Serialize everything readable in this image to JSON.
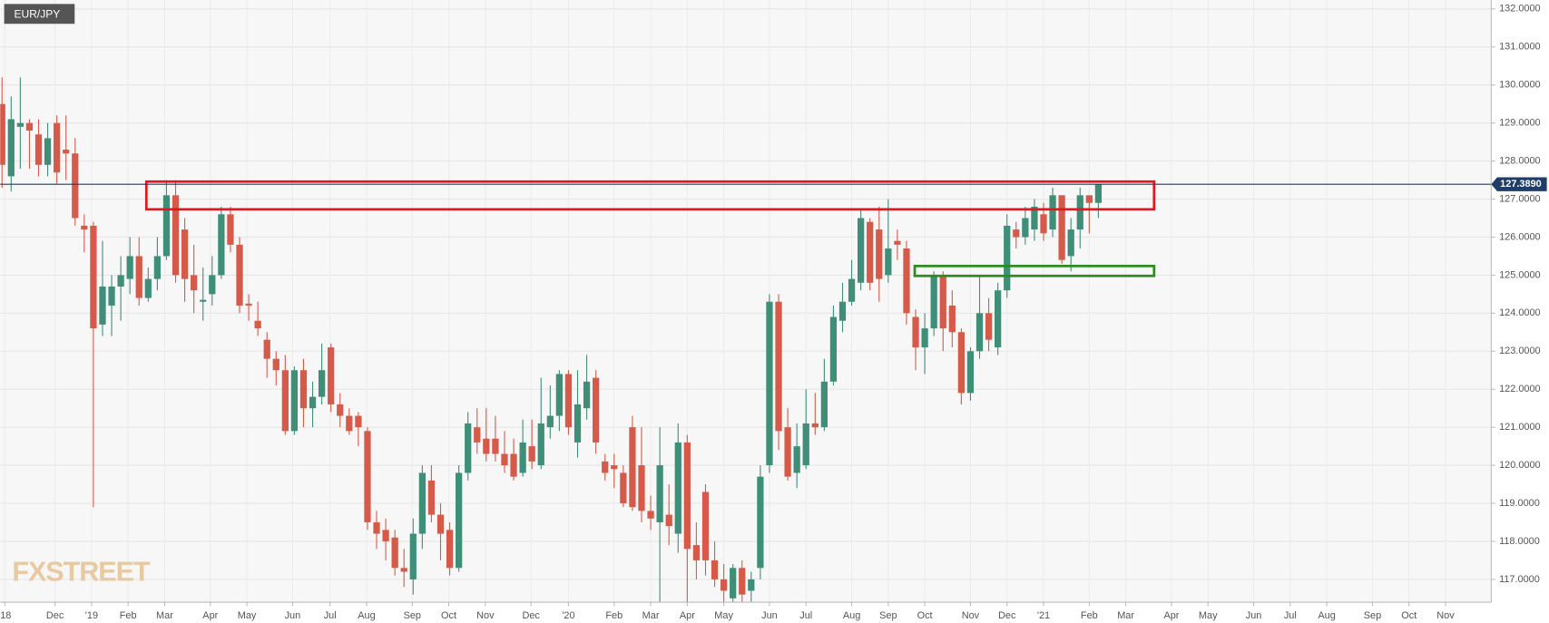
{
  "chart_data": {
    "type": "candlestick",
    "symbol": "EUR/JPY",
    "watermark": "FXSTREET",
    "up_color": "#3e8e78",
    "down_color": "#d55a4a",
    "grid": true,
    "x": [
      0,
      1,
      2,
      3,
      4,
      5,
      6,
      7,
      8,
      9,
      10,
      11,
      12,
      13,
      14,
      15,
      16,
      17,
      18,
      19,
      20,
      21,
      22,
      23,
      24,
      25,
      26,
      27,
      28,
      29,
      30,
      31,
      32,
      33,
      34,
      35,
      36,
      37,
      38,
      39,
      40,
      41,
      42,
      43,
      44,
      45,
      46,
      47,
      48,
      49,
      50,
      51,
      52,
      53,
      54,
      55,
      56,
      57,
      58,
      59,
      60,
      61,
      62,
      63,
      64,
      65,
      66,
      67,
      68,
      69,
      70,
      71,
      72,
      73,
      74,
      75,
      76,
      77,
      78,
      79,
      80,
      81,
      82,
      83,
      84,
      85,
      86,
      87,
      88,
      89,
      90,
      91,
      92,
      93,
      94,
      95,
      96,
      97,
      98,
      99,
      100,
      101,
      102,
      103,
      104,
      105,
      106,
      107,
      108,
      109,
      110,
      111,
      112,
      113,
      114,
      115,
      116,
      117,
      118,
      119,
      120
    ],
    "open": [
      129.5,
      127.6,
      128.9,
      129.0,
      128.7,
      127.9,
      129.0,
      128.3,
      128.2,
      126.3,
      126.3,
      123.7,
      124.2,
      124.7,
      124.9,
      125.5,
      124.4,
      124.9,
      125.5,
      127.1,
      126.2,
      125.0,
      124.3,
      124.5,
      125.0,
      126.6,
      125.8,
      124.25,
      123.8,
      123.3,
      122.8,
      122.5,
      120.9,
      122.5,
      121.5,
      121.8,
      123.1,
      121.6,
      121.3,
      121.3,
      120.9,
      118.5,
      118.3,
      118.1,
      117.3,
      117.0,
      118.2,
      119.6,
      118.7,
      118.3,
      117.3,
      119.8,
      121.0,
      120.7,
      120.7,
      120.3,
      120.3,
      119.8,
      120.5,
      120.0,
      121.0,
      121.3,
      122.4,
      120.6,
      121.5,
      122.3,
      120.1,
      120.0,
      119.8,
      121.0,
      120.0,
      118.8,
      118.5,
      118.7,
      118.2,
      120.6,
      117.9,
      119.3,
      117.5,
      117.0,
      116.5,
      117.3,
      116.7,
      117.3,
      120.0,
      124.3,
      121.0,
      119.8,
      120.0,
      121.1,
      121.0,
      122.2,
      123.8,
      124.3,
      124.8,
      126.4,
      126.2,
      125.0,
      125.9,
      125.7,
      123.9,
      123.1,
      123.6,
      125.0,
      124.2,
      123.5,
      121.9,
      123.0,
      124.0,
      123.1,
      124.6,
      126.2,
      126.0,
      126.2,
      126.6,
      126.2,
      127.1,
      125.5,
      126.2,
      127.1,
      126.9
    ],
    "high": [
      130.2,
      129.7,
      130.2,
      129.1,
      129.1,
      129.0,
      129.2,
      129.2,
      128.6,
      126.6,
      126.4,
      125.9,
      125.0,
      125.5,
      126.0,
      126.0,
      125.2,
      126.0,
      127.5,
      127.5,
      126.5,
      125.8,
      125.2,
      125.5,
      126.8,
      126.8,
      126.0,
      124.5,
      124.3,
      123.5,
      123.0,
      122.9,
      122.6,
      122.8,
      122.2,
      123.2,
      123.2,
      121.9,
      121.5,
      121.4,
      121.0,
      118.8,
      118.6,
      118.3,
      117.8,
      118.6,
      120.0,
      120.0,
      119.0,
      118.5,
      120.0,
      121.4,
      121.5,
      121.5,
      121.3,
      120.9,
      120.7,
      121.2,
      121.2,
      122.3,
      122.1,
      122.5,
      122.5,
      122.5,
      122.9,
      122.5,
      120.3,
      120.3,
      120.0,
      121.3,
      121.0,
      119.2,
      121.0,
      119.5,
      121.1,
      120.8,
      118.5,
      119.5,
      118.0,
      117.4,
      117.4,
      117.5,
      117.2,
      120.0,
      124.5,
      124.5,
      121.5,
      121.1,
      122.0,
      121.9,
      122.8,
      124.2,
      124.8,
      125.4,
      126.7,
      126.5,
      126.8,
      127.0,
      126.2,
      125.9,
      124.1,
      124.0,
      125.1,
      125.1,
      124.6,
      123.6,
      123.1,
      125.0,
      124.4,
      124.8,
      126.6,
      126.4,
      126.8,
      127.0,
      126.9,
      127.3,
      127.1,
      126.5,
      127.3,
      127.1,
      127.4
    ],
    "low": [
      127.3,
      127.2,
      127.8,
      127.8,
      127.6,
      127.6,
      127.4,
      127.5,
      126.3,
      125.6,
      118.9,
      123.4,
      123.4,
      123.8,
      124.5,
      124.2,
      124.3,
      124.6,
      125.4,
      124.8,
      124.3,
      124.0,
      123.8,
      124.2,
      124.9,
      125.6,
      124.0,
      123.8,
      123.4,
      122.3,
      122.1,
      120.8,
      120.8,
      121.0,
      121.0,
      121.6,
      121.4,
      121.0,
      120.8,
      120.5,
      118.3,
      117.8,
      117.5,
      117.1,
      116.8,
      116.6,
      117.8,
      118.5,
      117.5,
      117.1,
      117.2,
      119.6,
      120.3,
      120.1,
      120.1,
      119.8,
      119.6,
      119.7,
      119.9,
      119.9,
      120.7,
      120.9,
      120.8,
      120.2,
      121.2,
      120.3,
      119.6,
      119.4,
      118.9,
      118.8,
      118.5,
      118.3,
      115.9,
      117.9,
      117.7,
      116.2,
      117.0,
      117.1,
      116.8,
      116.3,
      116.1,
      116.4,
      116.3,
      117.0,
      119.8,
      120.4,
      119.6,
      119.4,
      119.9,
      120.8,
      120.9,
      122.1,
      123.5,
      124.2,
      124.6,
      124.6,
      124.3,
      124.8,
      125.4,
      123.7,
      122.5,
      122.4,
      123.4,
      123.0,
      123.1,
      121.6,
      121.7,
      122.8,
      123.0,
      122.9,
      124.4,
      125.7,
      125.8,
      125.9,
      125.9,
      126.0,
      125.3,
      125.1,
      125.7,
      126.1,
      126.5
    ],
    "close": [
      127.9,
      129.1,
      129.0,
      128.8,
      127.9,
      128.6,
      127.7,
      128.2,
      126.5,
      126.2,
      123.6,
      124.7,
      124.7,
      125.0,
      125.5,
      124.4,
      124.9,
      125.5,
      127.1,
      125.0,
      124.9,
      124.6,
      124.35,
      125.0,
      126.6,
      125.8,
      124.2,
      124.2,
      123.6,
      122.8,
      122.5,
      120.9,
      122.5,
      121.5,
      121.8,
      122.5,
      121.6,
      121.3,
      120.9,
      121.0,
      118.5,
      118.2,
      118.0,
      117.3,
      117.2,
      118.2,
      119.8,
      118.7,
      118.2,
      117.3,
      119.8,
      121.1,
      120.6,
      120.3,
      120.3,
      120.0,
      119.7,
      120.6,
      120.1,
      121.1,
      121.3,
      122.4,
      121.0,
      121.6,
      122.2,
      120.6,
      119.8,
      119.9,
      119.0,
      118.9,
      118.8,
      118.6,
      120.0,
      118.4,
      120.6,
      117.8,
      117.5,
      117.5,
      117.0,
      116.7,
      117.3,
      116.6,
      117.0,
      119.7,
      124.3,
      120.9,
      119.7,
      120.5,
      121.1,
      121.0,
      122.2,
      123.9,
      124.3,
      124.9,
      126.5,
      124.8,
      124.9,
      125.7,
      125.8,
      124.0,
      123.1,
      123.6,
      125.0,
      123.6,
      123.5,
      121.9,
      123.0,
      124.0,
      123.3,
      124.6,
      126.3,
      126.0,
      126.5,
      126.8,
      126.1,
      127.1,
      125.4,
      126.2,
      127.1,
      126.9,
      127.389
    ],
    "xlim": [
      -0.2,
      163
    ],
    "xticks": [
      {
        "value": 0.3,
        "label": "'18"
      },
      {
        "value": 5.8,
        "label": "Dec"
      },
      {
        "value": 9.8,
        "label": "'19"
      },
      {
        "value": 13.8,
        "label": "Feb"
      },
      {
        "value": 17.8,
        "label": "Mar"
      },
      {
        "value": 22.8,
        "label": "Apr"
      },
      {
        "value": 26.8,
        "label": "May"
      },
      {
        "value": 31.8,
        "label": "Jun"
      },
      {
        "value": 35.9,
        "label": "Jul"
      },
      {
        "value": 39.9,
        "label": "Aug"
      },
      {
        "value": 44.9,
        "label": "Sep"
      },
      {
        "value": 48.9,
        "label": "Oct"
      },
      {
        "value": 52.9,
        "label": "Nov"
      },
      {
        "value": 57.9,
        "label": "Dec"
      },
      {
        "value": 62,
        "label": "'20"
      },
      {
        "value": 67,
        "label": "Feb"
      },
      {
        "value": 71,
        "label": "Mar"
      },
      {
        "value": 75,
        "label": "Apr"
      },
      {
        "value": 79,
        "label": "May"
      },
      {
        "value": 84,
        "label": "Jun"
      },
      {
        "value": 88,
        "label": "Jul"
      },
      {
        "value": 93,
        "label": "Aug"
      },
      {
        "value": 97,
        "label": "Sep"
      },
      {
        "value": 101,
        "label": "Oct"
      },
      {
        "value": 106,
        "label": "Nov"
      },
      {
        "value": 110,
        "label": "Dec"
      },
      {
        "value": 114,
        "label": "'21"
      },
      {
        "value": 119,
        "label": "Feb"
      },
      {
        "value": 123,
        "label": "Mar"
      },
      {
        "value": 128,
        "label": "Apr"
      },
      {
        "value": 132,
        "label": "May"
      },
      {
        "value": 137,
        "label": "Jun"
      },
      {
        "value": 141,
        "label": "Jul"
      },
      {
        "value": 145,
        "label": "Aug"
      },
      {
        "value": 150,
        "label": "Sep"
      },
      {
        "value": 154,
        "label": "Oct"
      },
      {
        "value": 158,
        "label": "Nov"
      }
    ],
    "ylim": [
      116.4,
      132.235
    ],
    "yticks": [
      {
        "value": 117,
        "label": "117.0000"
      },
      {
        "value": 118,
        "label": "118.0000"
      },
      {
        "value": 119,
        "label": "119.0000"
      },
      {
        "value": 120,
        "label": "120.0000"
      },
      {
        "value": 121,
        "label": "121.0000"
      },
      {
        "value": 122,
        "label": "122.0000"
      },
      {
        "value": 123,
        "label": "123.0000"
      },
      {
        "value": 124,
        "label": "124.0000"
      },
      {
        "value": 125,
        "label": "125.0000"
      },
      {
        "value": 126,
        "label": "126.0000"
      },
      {
        "value": 127,
        "label": "127.0000"
      },
      {
        "value": 128,
        "label": "128.0000"
      },
      {
        "value": 129,
        "label": "129.0000"
      },
      {
        "value": 130,
        "label": "130.0000"
      },
      {
        "value": 131,
        "label": "131.0000"
      },
      {
        "value": 132,
        "label": "132.0000"
      }
    ],
    "current_price": {
      "value": 127.389,
      "label": "127.3890",
      "color": "#1f3d66"
    },
    "zones": [
      {
        "color": "#e0191e",
        "xlim": [
          15.8,
          126.1
        ],
        "ylim": [
          126.73,
          127.46
        ]
      },
      {
        "color": "#2e8b1e",
        "xlim": [
          99.9,
          126.1
        ],
        "ylim": [
          124.98,
          125.24
        ]
      }
    ]
  }
}
